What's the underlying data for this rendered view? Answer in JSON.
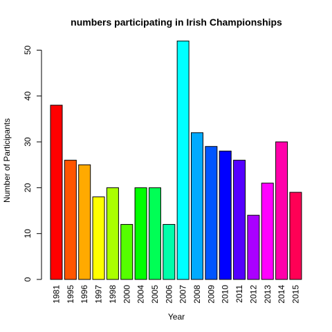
{
  "chart_data": {
    "type": "bar",
    "title": "numbers participating in Irish Championships",
    "xlabel": "Year",
    "ylabel": "Number of Participants",
    "categories": [
      "1981",
      "1995",
      "1996",
      "1997",
      "1998",
      "2000",
      "2004",
      "2005",
      "2006",
      "2007",
      "2008",
      "2009",
      "2010",
      "2011",
      "2012",
      "2013",
      "2014",
      "2015"
    ],
    "values": [
      38,
      26,
      25,
      18,
      20,
      12,
      20,
      20,
      12,
      52,
      32,
      29,
      28,
      26,
      14,
      21,
      30,
      19
    ],
    "colors": [
      "#FF0000",
      "#FF5500",
      "#FFAA00",
      "#FFFF00",
      "#AAFF00",
      "#55FF00",
      "#00FF00",
      "#00FF55",
      "#00FFAA",
      "#00FFFF",
      "#00AAFF",
      "#0055FF",
      "#0000FF",
      "#5500FF",
      "#AA00FF",
      "#FF00FF",
      "#FF00AA",
      "#FF0055"
    ],
    "yticks": [
      0,
      10,
      20,
      30,
      40,
      50
    ],
    "ylim": [
      0,
      52
    ],
    "grid": false,
    "legend": "none"
  }
}
